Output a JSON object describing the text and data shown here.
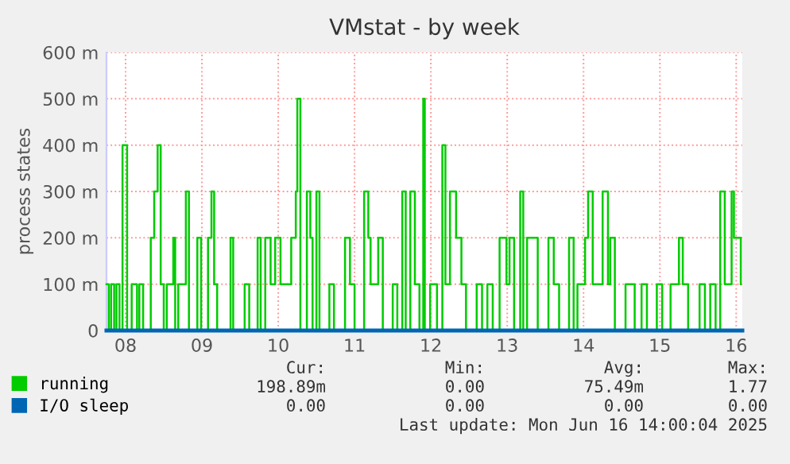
{
  "chart_data": {
    "type": "step",
    "title": "VMstat - by week",
    "ylabel": "process states",
    "xlim": [
      8.25,
      16.58
    ],
    "ylim": [
      0,
      600
    ],
    "xticks": [
      {
        "value": 8.5,
        "label": "08"
      },
      {
        "value": 9.5,
        "label": "09"
      },
      {
        "value": 10.5,
        "label": "10"
      },
      {
        "value": 11.5,
        "label": "11"
      },
      {
        "value": 12.5,
        "label": "12"
      },
      {
        "value": 13.5,
        "label": "13"
      },
      {
        "value": 14.5,
        "label": "14"
      },
      {
        "value": 15.5,
        "label": "15"
      },
      {
        "value": 16.5,
        "label": "16"
      }
    ],
    "yticks": [
      0,
      {
        "value": 100,
        "label": "100 m"
      },
      {
        "value": 200,
        "label": "200 m"
      },
      {
        "value": 300,
        "label": "300 m"
      },
      {
        "value": 400,
        "label": "400 m"
      },
      {
        "value": 500,
        "label": "500 m"
      },
      {
        "value": 600,
        "label": "600 m"
      }
    ],
    "grid": true,
    "legend": "bottom",
    "series": [
      {
        "name": "running",
        "color": "#00cc00",
        "x": [
          8.25,
          8.28,
          8.31,
          8.35,
          8.38,
          8.42,
          8.46,
          8.52,
          8.58,
          8.65,
          8.68,
          8.73,
          8.83,
          8.875,
          8.92,
          8.96,
          9.0,
          9.04,
          9.125,
          9.15,
          9.19,
          9.29,
          9.33,
          9.44,
          9.49,
          9.58,
          9.625,
          9.66,
          9.7,
          9.875,
          9.91,
          10.06,
          10.12,
          10.23,
          10.27,
          10.33,
          10.4,
          10.46,
          10.53,
          10.67,
          10.73,
          10.75,
          10.79,
          10.875,
          10.92,
          10.95,
          11.0,
          11.04,
          11.17,
          11.23,
          11.375,
          11.44,
          11.5,
          11.625,
          11.68,
          11.71,
          11.81,
          11.87,
          12.0,
          12.06,
          12.125,
          12.17,
          12.23,
          12.29,
          12.35,
          12.4,
          12.42,
          12.49,
          12.58,
          12.65,
          12.69,
          12.75,
          12.83,
          12.9,
          12.96,
          13.1,
          13.17,
          13.24,
          13.31,
          13.4,
          13.49,
          13.53,
          13.59,
          13.67,
          13.71,
          13.76,
          13.9,
          14.04,
          14.11,
          14.18,
          14.31,
          14.37,
          14.42,
          14.52,
          14.56,
          14.62,
          14.75,
          14.82,
          14.85,
          14.91,
          15.05,
          15.17,
          15.26,
          15.33,
          15.46,
          15.53,
          15.64,
          15.75,
          15.8,
          15.87,
          16.02,
          16.09,
          16.16,
          16.23,
          16.29,
          16.35,
          16.44,
          16.47,
          16.56
        ],
        "values": [
          100,
          0,
          100,
          0,
          100,
          0,
          400,
          0,
          100,
          0,
          100,
          0,
          200,
          300,
          400,
          100,
          0,
          100,
          200,
          0,
          100,
          300,
          0,
          200,
          0,
          200,
          300,
          100,
          0,
          200,
          0,
          100,
          0,
          200,
          0,
          200,
          100,
          200,
          100,
          200,
          300,
          500,
          0,
          300,
          200,
          0,
          300,
          0,
          100,
          0,
          200,
          100,
          0,
          300,
          200,
          100,
          200,
          0,
          100,
          0,
          300,
          0,
          300,
          100,
          0,
          500,
          0,
          100,
          0,
          400,
          100,
          300,
          200,
          100,
          0,
          100,
          0,
          100,
          0,
          200,
          100,
          200,
          0,
          300,
          0,
          200,
          0,
          200,
          100,
          0,
          200,
          0,
          100,
          200,
          300,
          100,
          300,
          100,
          200,
          0,
          100,
          0,
          100,
          0,
          100,
          0,
          100,
          200,
          100,
          0,
          100,
          0,
          100,
          0,
          300,
          100,
          300,
          200,
          100
        ]
      },
      {
        "name": "I/O sleep",
        "color": "#0066b3",
        "x": [
          8.25,
          16.58
        ],
        "values": [
          0,
          0
        ]
      }
    ],
    "annotations": [
      "Cur:",
      "Min:",
      "Avg:",
      "Max:",
      "198.89m",
      "0.00",
      "75.49m",
      "1.77",
      "0.00",
      "0.00",
      "0.00",
      "0.00",
      "Last update: Mon Jun 16 14:00:04 2025"
    ]
  }
}
